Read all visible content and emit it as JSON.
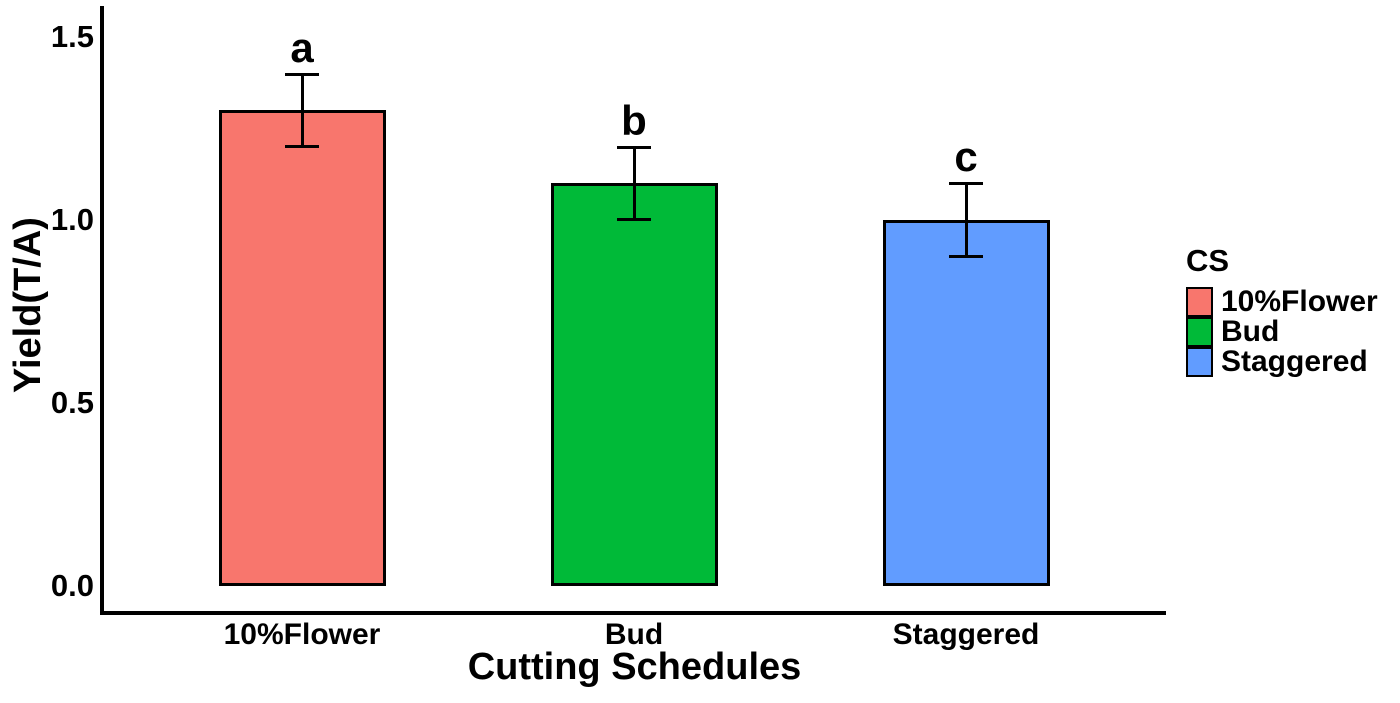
{
  "chart_data": {
    "type": "bar",
    "title": "",
    "xlabel": "Cutting Schedules",
    "ylabel": "Yield(T/A)",
    "categories": [
      "10%Flower",
      "Bud",
      "Staggered"
    ],
    "values": [
      1.3,
      1.1,
      1.0
    ],
    "error_bars": [
      0.1,
      0.1,
      0.1
    ],
    "significance_letters": [
      "a",
      "b",
      "c"
    ],
    "bar_colors": [
      "#F8766D",
      "#00BA38",
      "#619CFF"
    ],
    "bar_border_color": "#000000",
    "axis_color": "#000000",
    "ylim": [
      0,
      1.5
    ],
    "yticks": [
      {
        "value": 0.0,
        "label": "0.0"
      },
      {
        "value": 0.5,
        "label": "0.5"
      },
      {
        "value": 1.0,
        "label": "1.0"
      },
      {
        "value": 1.5,
        "label": "1.5"
      }
    ],
    "grid": "off",
    "legend": {
      "title": "CS",
      "position": "right",
      "entries": [
        {
          "label": "10%Flower",
          "color": "#F8766D"
        },
        {
          "label": "Bud",
          "color": "#00BA38"
        },
        {
          "label": "Staggered",
          "color": "#619CFF"
        }
      ]
    }
  }
}
